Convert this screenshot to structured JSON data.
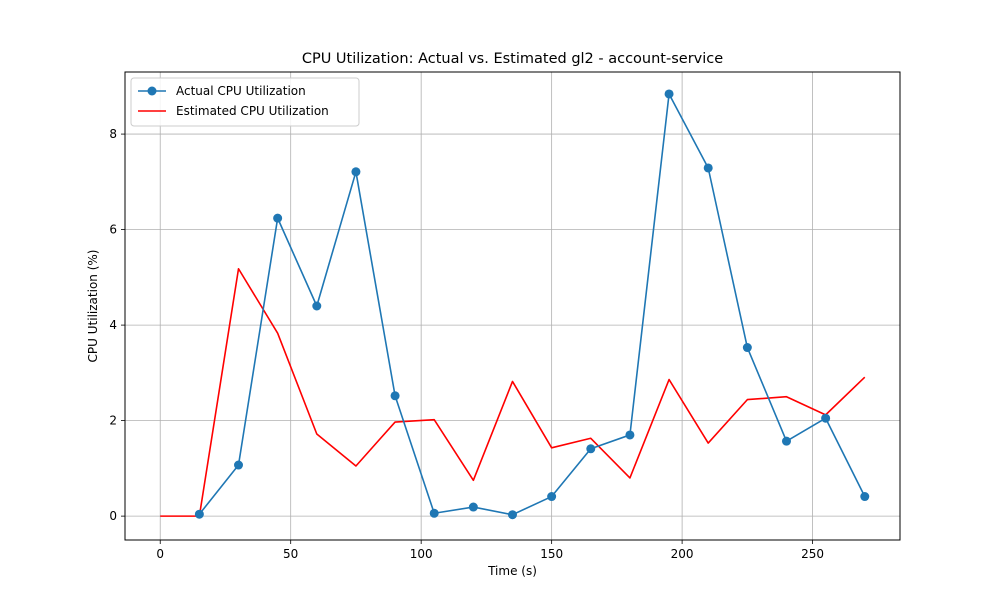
{
  "chart_data": {
    "type": "line",
    "title": "CPU Utilization: Actual vs. Estimated gl2 - account-service",
    "xlabel": "Time (s)",
    "ylabel": "CPU Utilization (%)",
    "xlim": [
      -13.5,
      283.5
    ],
    "ylim": [
      -0.5,
      9.3
    ],
    "xticks": [
      0,
      50,
      100,
      150,
      200,
      250
    ],
    "yticks": [
      0,
      2,
      4,
      6,
      8
    ],
    "grid": true,
    "legend_position": "upper-left",
    "series": [
      {
        "name": "Actual CPU Utilization",
        "color": "#1f77b4",
        "marker": "circle",
        "x": [
          15,
          30,
          45,
          60,
          75,
          90,
          105,
          120,
          135,
          150,
          165,
          180,
          195,
          210,
          225,
          240,
          255,
          270
        ],
        "y": [
          0.04,
          1.07,
          6.24,
          4.4,
          7.21,
          2.52,
          0.06,
          0.19,
          0.03,
          0.41,
          1.41,
          1.7,
          8.84,
          7.29,
          3.53,
          1.57,
          2.05,
          0.41
        ]
      },
      {
        "name": "Estimated CPU Utilization",
        "color": "#ff0000",
        "marker": "none",
        "x": [
          0,
          15,
          30,
          45,
          60,
          75,
          90,
          105,
          120,
          135,
          150,
          165,
          180,
          195,
          210,
          225,
          240,
          255,
          270
        ],
        "y": [
          0,
          0,
          5.18,
          3.83,
          1.72,
          1.05,
          1.97,
          2.02,
          0.75,
          2.82,
          1.43,
          1.63,
          0.8,
          2.86,
          1.53,
          2.44,
          2.5,
          2.12,
          2.91
        ]
      }
    ]
  }
}
